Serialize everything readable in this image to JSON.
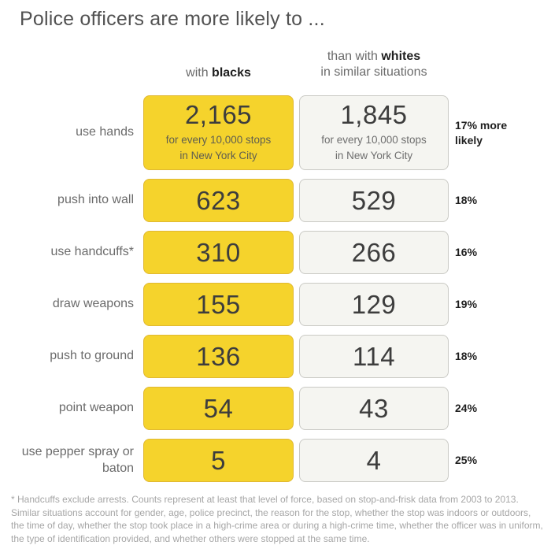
{
  "title": "Police officers are more likely to ...",
  "headers": {
    "left_prefix": "with ",
    "left_bold": "blacks",
    "right_line1_prefix": "than with ",
    "right_line1_bold": "whites",
    "right_line2": "in similar situations"
  },
  "rows": [
    {
      "label": "use hands",
      "black": "2,165",
      "white": "1,845",
      "pct": "17% more likely",
      "black_sub1": "for every 10,000 stops",
      "black_sub2": "in New York City",
      "white_sub1": "for every 10,000 stops",
      "white_sub2": "in New York City"
    },
    {
      "label": "push into wall",
      "black": "623",
      "white": "529",
      "pct": "18%"
    },
    {
      "label": "use handcuffs*",
      "black": "310",
      "white": "266",
      "pct": "16%"
    },
    {
      "label": "draw weapons",
      "black": "155",
      "white": "129",
      "pct": "19%"
    },
    {
      "label": "push to ground",
      "black": "136",
      "white": "114",
      "pct": "18%"
    },
    {
      "label": "point weapon",
      "black": "54",
      "white": "43",
      "pct": "24%"
    },
    {
      "label": "use pepper spray or baton",
      "black": "5",
      "white": "4",
      "pct": "25%"
    }
  ],
  "footnote": "* Handcuffs exclude arrests. Counts represent at least that level of force, based on stop-and-frisk data from 2003 to 2013. Similar situations account for gender, age, police precinct, the reason for the stop, whether the stop was indoors or outdoors, the time of day, whether the stop took place in a high-crime area or during a high-crime time, whether the officer was in uniform, the type of identification provided, and whether others were stopped at the same time.",
  "colors": {
    "highlight_fill": "#F5D32C",
    "highlight_border": "#E0B832",
    "neutral_fill": "#F5F5F1",
    "neutral_border": "#C9C9C4",
    "title_text": "#525252",
    "label_text": "#6B6B6B",
    "number_text": "#3D3D3D",
    "pct_text": "#1F1F1F",
    "footnote_text": "#A6A6A6"
  },
  "chart_data": {
    "type": "table",
    "title": "Police officers are more likely to ...",
    "categories": [
      "use hands",
      "push into wall",
      "use handcuffs*",
      "draw weapons",
      "push to ground",
      "point weapon",
      "use pepper spray or baton"
    ],
    "series": [
      {
        "name": "with blacks",
        "values": [
          2165,
          623,
          310,
          155,
          136,
          54,
          5
        ]
      },
      {
        "name": "than with whites in similar situations",
        "values": [
          1845,
          529,
          266,
          129,
          114,
          43,
          4
        ]
      }
    ],
    "pct_more_likely": [
      "17%",
      "18%",
      "16%",
      "19%",
      "18%",
      "24%",
      "25%"
    ],
    "unit": "for every 10,000 stops in New York City",
    "legend_position": "top",
    "grid": false,
    "footnote": "* Handcuffs exclude arrests. Counts represent at least that level of force, based on stop-and-frisk data from 2003 to 2013. Similar situations account for gender, age, police precinct, the reason for the stop, whether the stop was indoors or outdoors, the time of day, whether the stop took place in a high-crime area or during a high-crime time, whether the officer was in uniform, the type of identification provided, and whether others were stopped at the same time."
  }
}
